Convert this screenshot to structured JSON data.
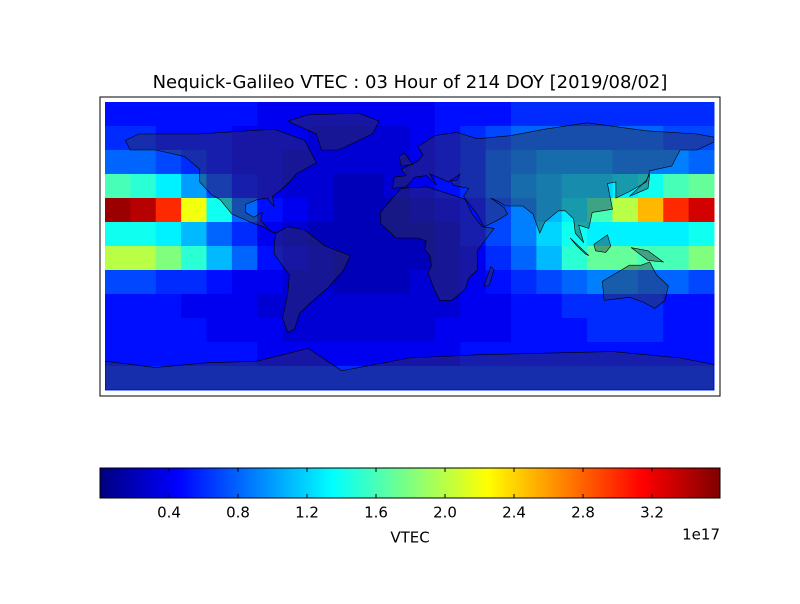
{
  "chart_data": {
    "type": "heatmap",
    "title": "Nequick-Galileo VTEC : 03 Hour of 214 DOY [2019/08/02]",
    "values": [
      [
        0.5,
        0.5,
        0.5,
        0.5,
        0.5,
        0.5,
        0.4,
        0.4,
        0.4,
        0.4,
        0.4,
        0.4,
        0.4,
        0.5,
        0.5,
        0.5,
        0.6,
        0.6,
        0.6,
        0.6,
        0.6,
        0.6,
        0.6,
        0.6
      ],
      [
        0.6,
        0.6,
        0.5,
        0.5,
        0.5,
        0.4,
        0.4,
        0.4,
        0.3,
        0.3,
        0.3,
        0.3,
        0.4,
        0.5,
        0.6,
        0.7,
        0.8,
        0.8,
        0.8,
        0.8,
        0.8,
        0.8,
        0.7,
        0.7
      ],
      [
        0.8,
        0.8,
        0.7,
        0.6,
        0.5,
        0.4,
        0.4,
        0.3,
        0.3,
        0.3,
        0.3,
        0.3,
        0.4,
        0.5,
        0.6,
        0.8,
        0.9,
        1.0,
        1.0,
        1.0,
        0.9,
        0.9,
        0.9,
        0.8
      ],
      [
        1.6,
        1.5,
        1.3,
        1.0,
        0.7,
        0.5,
        0.4,
        0.3,
        0.3,
        0.2,
        0.2,
        0.3,
        0.4,
        0.5,
        0.6,
        0.8,
        1.0,
        1.1,
        1.2,
        1.2,
        1.3,
        1.4,
        1.6,
        1.7
      ],
      [
        3.5,
        3.4,
        3.0,
        2.2,
        1.4,
        0.8,
        0.5,
        0.4,
        0.3,
        0.2,
        0.2,
        0.2,
        0.3,
        0.4,
        0.5,
        0.7,
        0.9,
        1.1,
        1.3,
        1.6,
        2.0,
        2.5,
        3.0,
        3.3
      ],
      [
        1.4,
        1.4,
        1.3,
        1.1,
        0.8,
        0.6,
        0.4,
        0.3,
        0.2,
        0.2,
        0.2,
        0.2,
        0.2,
        0.3,
        0.5,
        0.7,
        0.9,
        1.2,
        1.4,
        1.3,
        1.3,
        1.3,
        1.3,
        1.4
      ],
      [
        2.0,
        2.0,
        1.8,
        1.5,
        1.1,
        0.8,
        0.5,
        0.4,
        0.3,
        0.2,
        0.2,
        0.2,
        0.2,
        0.3,
        0.4,
        0.6,
        0.8,
        1.1,
        1.5,
        1.7,
        1.7,
        1.6,
        1.6,
        1.8
      ],
      [
        0.7,
        0.7,
        0.6,
        0.6,
        0.5,
        0.4,
        0.4,
        0.3,
        0.3,
        0.2,
        0.2,
        0.2,
        0.3,
        0.3,
        0.4,
        0.5,
        0.6,
        0.7,
        0.8,
        0.9,
        0.9,
        0.8,
        0.8,
        0.7
      ],
      [
        0.5,
        0.5,
        0.5,
        0.4,
        0.4,
        0.4,
        0.3,
        0.3,
        0.3,
        0.3,
        0.3,
        0.3,
        0.3,
        0.3,
        0.4,
        0.4,
        0.5,
        0.5,
        0.6,
        0.6,
        0.6,
        0.6,
        0.5,
        0.5
      ],
      [
        0.5,
        0.5,
        0.5,
        0.5,
        0.4,
        0.4,
        0.4,
        0.3,
        0.3,
        0.3,
        0.3,
        0.3,
        0.3,
        0.4,
        0.4,
        0.4,
        0.5,
        0.5,
        0.5,
        0.6,
        0.6,
        0.6,
        0.5,
        0.5
      ],
      [
        0.5,
        0.5,
        0.5,
        0.5,
        0.5,
        0.5,
        0.4,
        0.4,
        0.4,
        0.4,
        0.4,
        0.4,
        0.4,
        0.4,
        0.5,
        0.5,
        0.5,
        0.5,
        0.5,
        0.5,
        0.5,
        0.5,
        0.5,
        0.5
      ],
      [
        0.6,
        0.6,
        0.6,
        0.6,
        0.6,
        0.6,
        0.6,
        0.6,
        0.6,
        0.6,
        0.6,
        0.6,
        0.6,
        0.6,
        0.6,
        0.6,
        0.6,
        0.6,
        0.6,
        0.6,
        0.6,
        0.6,
        0.6,
        0.6
      ]
    ],
    "colorbar": {
      "lim": [
        0,
        3.594
      ],
      "ticks": [
        0.4,
        0.8,
        1.2,
        1.6,
        2.0,
        2.4,
        2.8,
        3.2
      ],
      "label": "VTEC",
      "offset_label": "1e17"
    }
  }
}
